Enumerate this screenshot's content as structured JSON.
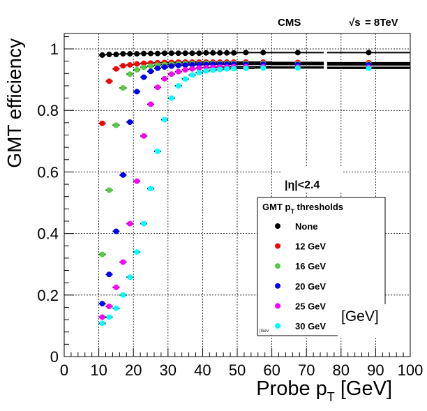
{
  "chart_data": {
    "type": "scatter",
    "title": "",
    "experiment_label": "CMS",
    "energy_label_prefix": "√s",
    "energy_label_value": "= 8TeV",
    "xlabel_main": "Probe p",
    "xlabel_sub": "T",
    "xlabel_unit": " [GeV]",
    "ylabel": "GMT efficiency",
    "xlim": [
      0,
      100
    ],
    "ylim": [
      0,
      1.05
    ],
    "grid": true,
    "x_ticks": [
      0,
      10,
      20,
      30,
      40,
      50,
      60,
      70,
      80,
      90,
      100
    ],
    "y_ticks": [
      0,
      0.2,
      0.4,
      0.6,
      0.8,
      1
    ],
    "y_tick_labels": [
      "0",
      "0.2",
      "0.4",
      "0.6",
      "0.8",
      "1"
    ],
    "x_tick_labels": [
      "0",
      "10",
      "20",
      "30",
      "40",
      "50",
      "60",
      "70",
      "80",
      "90",
      "100"
    ],
    "eta_label": "|η|<2.4",
    "legend": {
      "position": "bottom-right",
      "title_main": "GMT p",
      "title_sub": "T",
      "title_rest": " thresholds"
    },
    "stray_labels": {
      "small": "[GeV",
      "large": "[GeV]"
    },
    "series": [
      {
        "name": "None",
        "color": "#000000",
        "x": [
          11,
          13,
          15,
          17,
          19,
          21,
          23,
          25,
          27,
          29,
          31,
          33,
          35,
          37,
          39,
          41,
          43,
          45,
          47,
          49,
          52.5,
          57.5,
          67.5,
          88
        ],
        "xerr": [
          1,
          1,
          1,
          1,
          1,
          1,
          1,
          1,
          1,
          1,
          1,
          1,
          1,
          1,
          1,
          1,
          1,
          1,
          1,
          1,
          2.5,
          2.5,
          7.5,
          12
        ],
        "y": [
          0.98,
          0.982,
          0.982,
          0.984,
          0.984,
          0.984,
          0.985,
          0.985,
          0.985,
          0.986,
          0.986,
          0.986,
          0.986,
          0.986,
          0.986,
          0.987,
          0.987,
          0.987,
          0.987,
          0.987,
          0.988,
          0.988,
          0.988,
          0.988
        ]
      },
      {
        "name": "12 GeV",
        "color": "#ff0000",
        "x": [
          11,
          13,
          15,
          17,
          19,
          21,
          23,
          25,
          27,
          29,
          31,
          33,
          35,
          37,
          39,
          41,
          43,
          45,
          47,
          49,
          52.5,
          57.5,
          67.5,
          88
        ],
        "xerr": [
          1,
          1,
          1,
          1,
          1,
          1,
          1,
          1,
          1,
          1,
          1,
          1,
          1,
          1,
          1,
          1,
          1,
          1,
          1,
          1,
          2.5,
          2.5,
          7.5,
          12
        ],
        "y": [
          0.758,
          0.895,
          0.935,
          0.945,
          0.948,
          0.951,
          0.953,
          0.954,
          0.955,
          0.956,
          0.956,
          0.957,
          0.957,
          0.957,
          0.957,
          0.957,
          0.957,
          0.957,
          0.957,
          0.957,
          0.957,
          0.957,
          0.956,
          0.955
        ]
      },
      {
        "name": "16 GeV",
        "color": "#55cc44",
        "x": [
          11,
          13,
          15,
          17,
          19,
          21,
          23,
          25,
          27,
          29,
          31,
          33,
          35,
          37,
          39,
          41,
          43,
          45,
          47,
          49,
          52.5,
          57.5,
          67.5,
          88
        ],
        "xerr": [
          1,
          1,
          1,
          1,
          1,
          1,
          1,
          1,
          1,
          1,
          1,
          1,
          1,
          1,
          1,
          1,
          1,
          1,
          1,
          1,
          2.5,
          2.5,
          7.5,
          12
        ],
        "y": [
          0.332,
          0.541,
          0.752,
          0.873,
          0.918,
          0.932,
          0.94,
          0.944,
          0.947,
          0.949,
          0.95,
          0.951,
          0.952,
          0.952,
          0.952,
          0.953,
          0.953,
          0.953,
          0.953,
          0.953,
          0.953,
          0.953,
          0.952,
          0.951
        ]
      },
      {
        "name": "20 GeV",
        "color": "#0000ff",
        "x": [
          11,
          13,
          15,
          17,
          19,
          21,
          23,
          25,
          27,
          29,
          31,
          33,
          35,
          37,
          39,
          41,
          43,
          45,
          47,
          49,
          52.5,
          57.5,
          67.5,
          88
        ],
        "xerr": [
          1,
          1,
          1,
          1,
          1,
          1,
          1,
          1,
          1,
          1,
          1,
          1,
          1,
          1,
          1,
          1,
          1,
          1,
          1,
          1,
          2.5,
          2.5,
          7.5,
          12
        ],
        "y": [
          0.172,
          0.267,
          0.407,
          0.59,
          0.762,
          0.861,
          0.908,
          0.927,
          0.937,
          0.941,
          0.944,
          0.946,
          0.947,
          0.948,
          0.949,
          0.949,
          0.95,
          0.95,
          0.95,
          0.95,
          0.95,
          0.95,
          0.949,
          0.948
        ]
      },
      {
        "name": "25 GeV",
        "color": "#ff00ff",
        "x": [
          11,
          13,
          15,
          17,
          19,
          21,
          23,
          25,
          27,
          29,
          31,
          33,
          35,
          37,
          39,
          41,
          43,
          45,
          47,
          49,
          52.5,
          57.5,
          67.5,
          88
        ],
        "xerr": [
          1,
          1,
          1,
          1,
          1,
          1,
          1,
          1,
          1,
          1,
          1,
          1,
          1,
          1,
          1,
          1,
          1,
          1,
          1,
          1,
          2.5,
          2.5,
          7.5,
          12
        ],
        "y": [
          0.128,
          0.163,
          0.225,
          0.307,
          0.432,
          0.57,
          0.717,
          0.82,
          0.875,
          0.903,
          0.918,
          0.926,
          0.932,
          0.935,
          0.938,
          0.939,
          0.94,
          0.941,
          0.941,
          0.942,
          0.942,
          0.942,
          0.941,
          0.94
        ]
      },
      {
        "name": "30 GeV",
        "color": "#00ffff",
        "x": [
          11,
          13,
          15,
          17,
          19,
          21,
          23,
          25,
          27,
          29,
          31,
          33,
          35,
          37,
          39,
          41,
          43,
          45,
          47,
          49,
          52.5,
          57.5,
          67.5,
          88
        ],
        "xerr": [
          1,
          1,
          1,
          1,
          1,
          1,
          1,
          1,
          1,
          1,
          1,
          1,
          1,
          1,
          1,
          1,
          1,
          1,
          1,
          1,
          2.5,
          2.5,
          7.5,
          12
        ],
        "y": [
          0.108,
          0.128,
          0.157,
          0.2,
          0.258,
          0.34,
          0.432,
          0.546,
          0.667,
          0.77,
          0.84,
          0.88,
          0.902,
          0.915,
          0.923,
          0.928,
          0.931,
          0.933,
          0.935,
          0.936,
          0.937,
          0.938,
          0.938,
          0.937
        ]
      }
    ]
  }
}
